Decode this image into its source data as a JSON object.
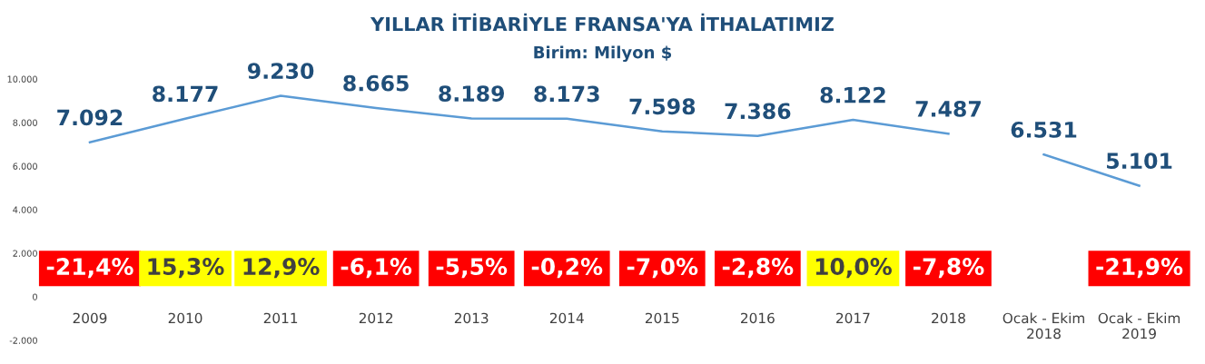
{
  "chart_data": {
    "type": "line",
    "title": "YILLAR İTİBARİYLE FRANSA'YA İTHALATIMIZ",
    "subtitle": "Birim: Milyon $",
    "categories": [
      "2009",
      "2010",
      "2011",
      "2012",
      "2013",
      "2014",
      "2015",
      "2016",
      "2017",
      "2018",
      "Ocak - Ekim\n2018",
      "Ocak - Ekim\n2019"
    ],
    "series": [
      {
        "color": "#5b9bd5",
        "values": [
          7092,
          8177,
          9230,
          8665,
          8189,
          8173,
          7598,
          7386,
          8122,
          7487,
          null,
          null
        ],
        "value_labels": [
          "7.092",
          "8.177",
          "9.230",
          "8.665",
          "8.189",
          "8.173",
          "7.598",
          "7.386",
          "8.122",
          "7.487",
          null,
          null
        ]
      },
      {
        "color": "#5b9bd5",
        "values": [
          null,
          null,
          null,
          null,
          null,
          null,
          null,
          null,
          null,
          null,
          6531,
          5101
        ],
        "value_labels": [
          null,
          null,
          null,
          null,
          null,
          null,
          null,
          null,
          null,
          null,
          "6.531",
          "5.101"
        ]
      }
    ],
    "ylim": [
      -2000,
      10000
    ],
    "yticks": [
      {
        "value": -2000,
        "label": "-2.000"
      },
      0,
      {
        "value": 2000,
        "label": "2.000"
      },
      {
        "value": 4000,
        "label": "4.000"
      },
      {
        "value": 6000,
        "label": "6.000"
      },
      {
        "value": 8000,
        "label": "8.000"
      },
      {
        "value": 10000,
        "label": "10.000"
      }
    ],
    "grid": false,
    "legend": false,
    "marker": "none",
    "line_style": "solid",
    "annotations": [
      "-21,4%",
      "15,3%",
      "12,9%",
      "-6,1%",
      "-5,5%",
      "-0,2%",
      "-7,0%",
      "-2,8%",
      "10,0%",
      "-7,8%",
      "-21,9%"
    ]
  }
}
